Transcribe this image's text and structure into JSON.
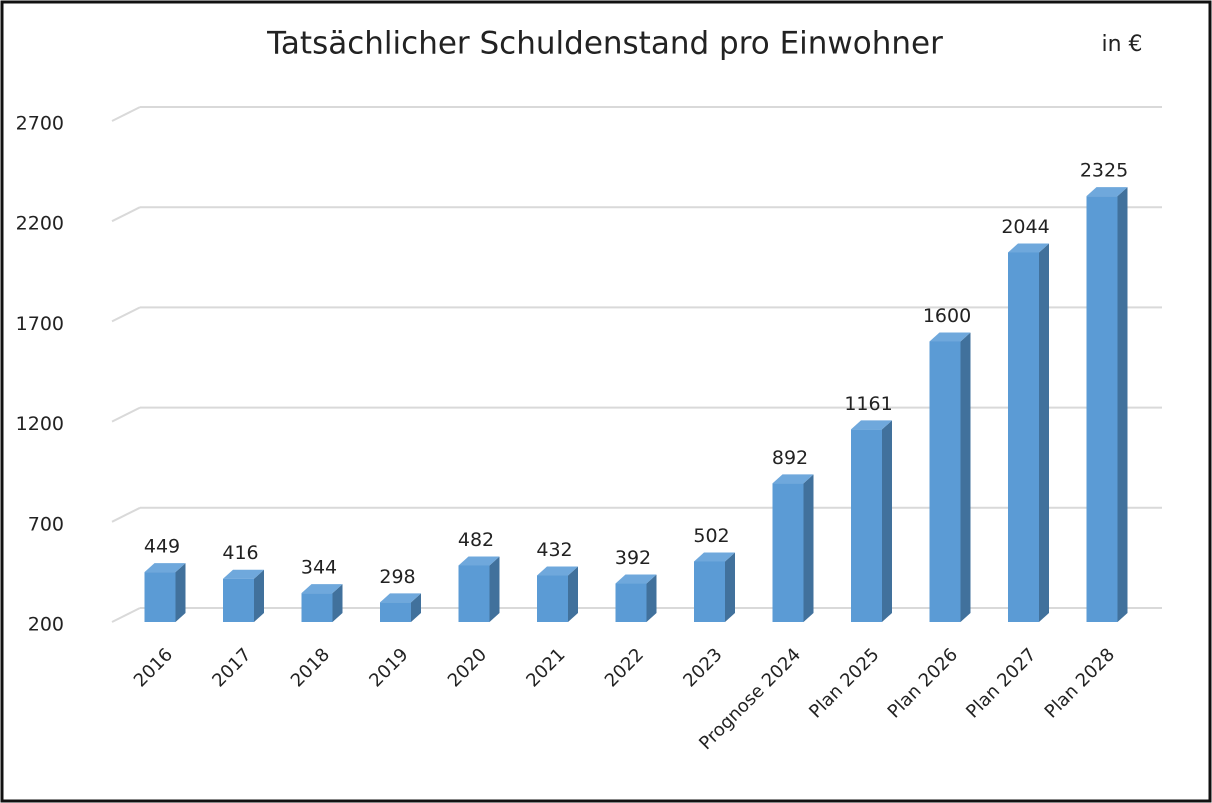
{
  "chart_data": {
    "type": "bar",
    "title": "Tatsächlicher Schuldenstand pro Einwohner",
    "unit_label": "in €",
    "categories": [
      "2016",
      "2017",
      "2018",
      "2019",
      "2020",
      "2021",
      "2022",
      "2023",
      "Prognose 2024",
      "Plan 2025",
      "Plan 2026",
      "Plan 2027",
      "Plan 2028"
    ],
    "values": [
      449,
      416,
      344,
      298,
      482,
      432,
      392,
      502,
      892,
      1161,
      1600,
      2044,
      2325
    ],
    "color": "#5b9bd5",
    "side_color": "#41719c",
    "top_color": "#6fa8dc",
    "ylim": [
      200,
      2700
    ],
    "yticks": [
      200,
      700,
      1200,
      1700,
      2200,
      2700
    ],
    "grid": true
  }
}
